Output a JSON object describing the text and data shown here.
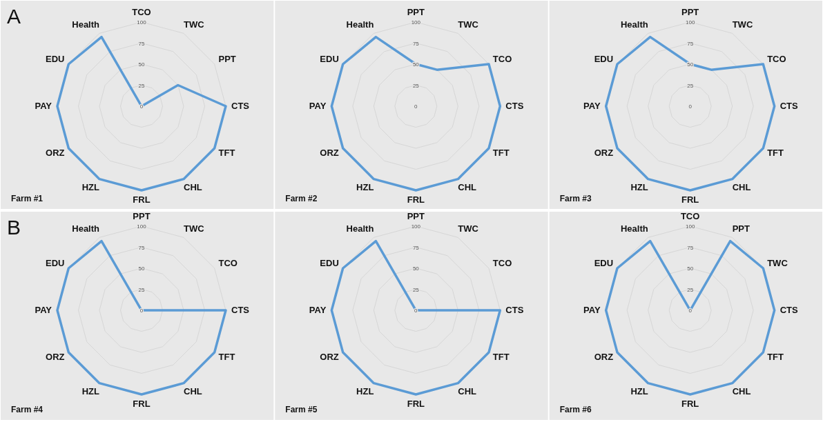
{
  "chart_data": [
    {
      "type": "radar",
      "categories": [
        "TCO",
        "TWC",
        "PPT",
        "CTS",
        "TFT",
        "CHL",
        "FRL",
        "HZL",
        "ORZ",
        "PAY",
        "EDU",
        "Health"
      ],
      "series": [
        {
          "color": "#5b9bd5",
          "values": [
            0,
            0,
            50,
            100,
            100,
            100,
            100,
            100,
            100,
            100,
            100,
            95
          ]
        }
      ],
      "ylim": [
        0,
        100
      ],
      "yticks": [
        0,
        25,
        50,
        75,
        100
      ],
      "grid": true,
      "marker": "none",
      "annotations": [
        "A",
        "Farm #1"
      ]
    },
    {
      "type": "radar",
      "categories": [
        "PPT",
        "TWC",
        "TCO",
        "CTS",
        "TFT",
        "CHL",
        "FRL",
        "HZL",
        "ORZ",
        "PAY",
        "EDU",
        "Health"
      ],
      "series": [
        {
          "color": "#5b9bd5",
          "values": [
            50,
            50,
            100,
            100,
            100,
            100,
            100,
            100,
            100,
            100,
            100,
            95
          ]
        }
      ],
      "ylim": [
        0,
        100
      ],
      "yticks": [
        0,
        25,
        50,
        75,
        100
      ],
      "grid": true,
      "marker": "none",
      "annotations": [
        "Farm #2"
      ]
    },
    {
      "type": "radar",
      "categories": [
        "PPT",
        "TWC",
        "TCO",
        "CTS",
        "TFT",
        "CHL",
        "FRL",
        "HZL",
        "ORZ",
        "PAY",
        "EDU",
        "Health"
      ],
      "series": [
        {
          "color": "#5b9bd5",
          "values": [
            50,
            50,
            100,
            100,
            100,
            100,
            100,
            100,
            100,
            100,
            100,
            95
          ]
        }
      ],
      "ylim": [
        0,
        100
      ],
      "yticks": [
        0,
        25,
        50,
        75,
        100
      ],
      "grid": true,
      "marker": "none",
      "annotations": [
        "Farm #3"
      ]
    },
    {
      "type": "radar",
      "categories": [
        "PPT",
        "TWC",
        "TCO",
        "CTS",
        "TFT",
        "CHL",
        "FRL",
        "HZL",
        "ORZ",
        "PAY",
        "EDU",
        "Health"
      ],
      "series": [
        {
          "color": "#5b9bd5",
          "values": [
            0,
            0,
            0,
            100,
            100,
            100,
            100,
            100,
            100,
            100,
            100,
            95
          ]
        }
      ],
      "ylim": [
        0,
        100
      ],
      "yticks": [
        0,
        25,
        50,
        75,
        100
      ],
      "grid": true,
      "marker": "none",
      "annotations": [
        "B",
        "Farm #4"
      ]
    },
    {
      "type": "radar",
      "categories": [
        "PPT",
        "TWC",
        "TCO",
        "CTS",
        "TFT",
        "CHL",
        "FRL",
        "HZL",
        "ORZ",
        "PAY",
        "EDU",
        "Health"
      ],
      "series": [
        {
          "color": "#5b9bd5",
          "values": [
            0,
            0,
            0,
            100,
            100,
            100,
            100,
            100,
            100,
            100,
            100,
            95
          ]
        }
      ],
      "ylim": [
        0,
        100
      ],
      "yticks": [
        0,
        25,
        50,
        75,
        100
      ],
      "grid": true,
      "marker": "none",
      "annotations": [
        "Farm #5"
      ]
    },
    {
      "type": "radar",
      "categories": [
        "TCO",
        "PPT",
        "TWC",
        "CTS",
        "TFT",
        "CHL",
        "FRL",
        "HZL",
        "ORZ",
        "PAY",
        "EDU",
        "Health"
      ],
      "series": [
        {
          "color": "#5b9bd5",
          "values": [
            0,
            95,
            100,
            100,
            100,
            100,
            100,
            100,
            100,
            100,
            100,
            95
          ]
        }
      ],
      "ylim": [
        0,
        100
      ],
      "yticks": [
        0,
        25,
        50,
        75,
        100
      ],
      "grid": true,
      "marker": "none",
      "annotations": [
        "Farm #6"
      ]
    }
  ]
}
